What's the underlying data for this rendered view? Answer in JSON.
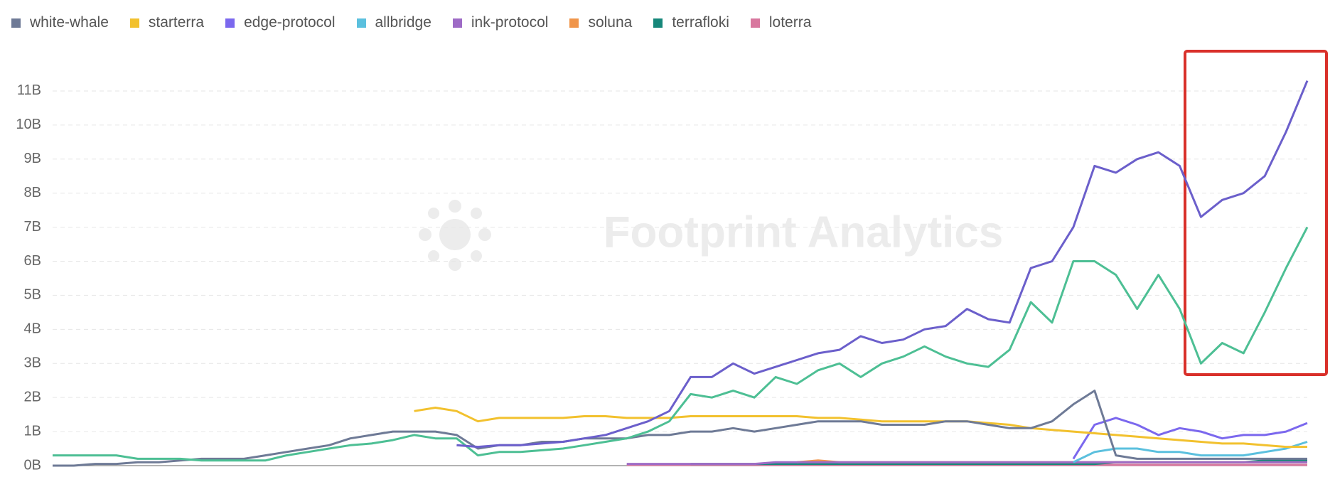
{
  "chart_data": {
    "type": "line",
    "watermark": "Footprint Analytics",
    "grid": true,
    "ylim": [
      0,
      11500000000.0
    ],
    "yticks": [
      {
        "value": 0,
        "label": "0B"
      },
      {
        "value": 1000000000.0,
        "label": "1B"
      },
      {
        "value": 2000000000.0,
        "label": "2B"
      },
      {
        "value": 3000000000.0,
        "label": "3B"
      },
      {
        "value": 4000000000.0,
        "label": "4B"
      },
      {
        "value": 5000000000.0,
        "label": "5B"
      },
      {
        "value": 6000000000.0,
        "label": "6B"
      },
      {
        "value": 7000000000.0,
        "label": "7B"
      },
      {
        "value": 8000000000.0,
        "label": "8B"
      },
      {
        "value": 9000000000.0,
        "label": "9B"
      },
      {
        "value": 10000000000.0,
        "label": "10B"
      },
      {
        "value": 11000000000.0,
        "label": "11B"
      }
    ],
    "series": [
      {
        "color": "#6b5fcb",
        "values": [
          null,
          null,
          null,
          null,
          null,
          null,
          null,
          null,
          null,
          null,
          null,
          null,
          null,
          null,
          null,
          null,
          null,
          null,
          null,
          600000000.0,
          550000000.0,
          600000000.0,
          600000000.0,
          650000000.0,
          700000000.0,
          800000000.0,
          900000000.0,
          1100000000.0,
          1300000000.0,
          1600000000.0,
          2600000000.0,
          2600000000.0,
          3000000000.0,
          2700000000.0,
          2900000000.0,
          3100000000.0,
          3300000000.0,
          3400000000.0,
          3800000000.0,
          3600000000.0,
          3700000000.0,
          4000000000.0,
          4100000000.0,
          4600000000.0,
          4300000000.0,
          4200000000.0,
          5800000000.0,
          6000000000.0,
          7000000000.0,
          8800000000.0,
          8600000000.0,
          9000000000.0,
          9200000000.0,
          8800000000.0,
          7300000000.0,
          7800000000.0,
          8000000000.0,
          8500000000.0,
          9800000000.0,
          11300000000.0
        ]
      },
      {
        "color": "#4dbf94",
        "values": [
          300000000.0,
          300000000.0,
          300000000.0,
          300000000.0,
          200000000.0,
          200000000.0,
          200000000.0,
          150000000.0,
          150000000.0,
          150000000.0,
          150000000.0,
          300000000.0,
          400000000.0,
          500000000.0,
          600000000.0,
          650000000.0,
          750000000.0,
          900000000.0,
          800000000.0,
          800000000.0,
          300000000.0,
          400000000.0,
          400000000.0,
          450000000.0,
          500000000.0,
          600000000.0,
          700000000.0,
          800000000.0,
          1000000000.0,
          1300000000.0,
          2100000000.0,
          2000000000.0,
          2200000000.0,
          2000000000.0,
          2600000000.0,
          2400000000.0,
          2800000000.0,
          3000000000.0,
          2600000000.0,
          3000000000.0,
          3200000000.0,
          3500000000.0,
          3200000000.0,
          3000000000.0,
          2900000000.0,
          3400000000.0,
          4800000000.0,
          4200000000.0,
          6000000000.0,
          6000000000.0,
          5600000000.0,
          4600000000.0,
          5600000000.0,
          4600000000.0,
          3000000000.0,
          3600000000.0,
          3300000000.0,
          4500000000.0,
          5800000000.0,
          7000000000.0
        ]
      },
      {
        "name": "white-whale",
        "color": "#6e7a96",
        "values": [
          0,
          0,
          50000000.0,
          50000000.0,
          100000000.0,
          100000000.0,
          150000000.0,
          200000000.0,
          200000000.0,
          200000000.0,
          300000000.0,
          400000000.0,
          500000000.0,
          600000000.0,
          800000000.0,
          900000000.0,
          1000000000.0,
          1000000000.0,
          1000000000.0,
          900000000.0,
          500000000.0,
          600000000.0,
          600000000.0,
          700000000.0,
          700000000.0,
          800000000.0,
          800000000.0,
          800000000.0,
          900000000.0,
          900000000.0,
          1000000000.0,
          1000000000.0,
          1100000000.0,
          1000000000.0,
          1100000000.0,
          1200000000.0,
          1300000000.0,
          1300000000.0,
          1300000000.0,
          1200000000.0,
          1200000000.0,
          1200000000.0,
          1300000000.0,
          1300000000.0,
          1200000000.0,
          1100000000.0,
          1100000000.0,
          1300000000.0,
          1800000000.0,
          2200000000.0,
          300000000.0,
          200000000.0,
          200000000.0,
          200000000.0,
          200000000.0,
          200000000.0,
          200000000.0,
          200000000.0,
          200000000.0,
          200000000.0
        ]
      },
      {
        "name": "starterra",
        "color": "#f2c12e",
        "values": [
          null,
          null,
          null,
          null,
          null,
          null,
          null,
          null,
          null,
          null,
          null,
          null,
          null,
          null,
          null,
          null,
          null,
          1600000000.0,
          1700000000.0,
          1600000000.0,
          1300000000.0,
          1400000000.0,
          1400000000.0,
          1400000000.0,
          1400000000.0,
          1450000000.0,
          1450000000.0,
          1400000000.0,
          1400000000.0,
          1400000000.0,
          1450000000.0,
          1450000000.0,
          1450000000.0,
          1450000000.0,
          1450000000.0,
          1450000000.0,
          1400000000.0,
          1400000000.0,
          1350000000.0,
          1300000000.0,
          1300000000.0,
          1300000000.0,
          1300000000.0,
          1300000000.0,
          1250000000.0,
          1200000000.0,
          1100000000.0,
          1050000000.0,
          1000000000.0,
          950000000.0,
          900000000.0,
          850000000.0,
          800000000.0,
          750000000.0,
          700000000.0,
          650000000.0,
          650000000.0,
          600000000.0,
          550000000.0,
          550000000.0
        ]
      },
      {
        "name": "edge-protocol",
        "color": "#7b68ee",
        "values": [
          null,
          null,
          null,
          null,
          null,
          null,
          null,
          null,
          null,
          null,
          null,
          null,
          null,
          null,
          null,
          null,
          null,
          null,
          null,
          null,
          null,
          null,
          null,
          null,
          null,
          null,
          null,
          null,
          null,
          null,
          null,
          null,
          null,
          null,
          null,
          null,
          null,
          null,
          null,
          null,
          null,
          null,
          null,
          null,
          null,
          null,
          null,
          null,
          200000000.0,
          1200000000.0,
          1400000000.0,
          1200000000.0,
          900000000.0,
          1100000000.0,
          1000000000.0,
          800000000.0,
          900000000.0,
          900000000.0,
          1000000000.0,
          1250000000.0
        ]
      },
      {
        "name": "allbridge",
        "color": "#5bc0de",
        "values": [
          null,
          null,
          null,
          null,
          null,
          null,
          null,
          null,
          null,
          null,
          null,
          null,
          null,
          null,
          null,
          null,
          null,
          null,
          null,
          null,
          null,
          null,
          null,
          null,
          null,
          null,
          null,
          null,
          null,
          null,
          null,
          null,
          null,
          null,
          null,
          null,
          null,
          null,
          null,
          null,
          null,
          null,
          null,
          null,
          null,
          null,
          null,
          null,
          100000000.0,
          400000000.0,
          500000000.0,
          500000000.0,
          400000000.0,
          400000000.0,
          300000000.0,
          300000000.0,
          300000000.0,
          400000000.0,
          500000000.0,
          700000000.0
        ]
      },
      {
        "name": "ink-protocol",
        "color": "#9e6bc6",
        "values": [
          null,
          null,
          null,
          null,
          null,
          null,
          null,
          null,
          null,
          null,
          null,
          null,
          null,
          null,
          null,
          null,
          null,
          null,
          null,
          null,
          null,
          null,
          null,
          null,
          null,
          null,
          null,
          50000000.0,
          50000000.0,
          50000000.0,
          50000000.0,
          50000000.0,
          50000000.0,
          50000000.0,
          100000000.0,
          100000000.0,
          100000000.0,
          100000000.0,
          100000000.0,
          100000000.0,
          100000000.0,
          100000000.0,
          100000000.0,
          100000000.0,
          100000000.0,
          100000000.0,
          100000000.0,
          100000000.0,
          100000000.0,
          100000000.0,
          100000000.0,
          100000000.0,
          100000000.0,
          100000000.0,
          100000000.0,
          100000000.0,
          100000000.0,
          100000000.0,
          100000000.0,
          100000000.0
        ]
      },
      {
        "name": "soluna",
        "color": "#f0954a",
        "values": [
          null,
          null,
          null,
          null,
          null,
          null,
          null,
          null,
          null,
          null,
          null,
          null,
          null,
          null,
          null,
          null,
          null,
          null,
          null,
          null,
          null,
          null,
          null,
          null,
          null,
          null,
          null,
          null,
          null,
          null,
          null,
          null,
          null,
          null,
          null,
          100000000.0,
          150000000.0,
          100000000.0,
          100000000.0,
          100000000.0,
          100000000.0,
          100000000.0,
          100000000.0,
          100000000.0,
          100000000.0,
          100000000.0,
          100000000.0,
          100000000.0,
          100000000.0,
          100000000.0,
          100000000.0,
          100000000.0,
          100000000.0,
          100000000.0,
          100000000.0,
          100000000.0,
          100000000.0,
          100000000.0,
          100000000.0,
          100000000.0
        ]
      },
      {
        "name": "terrafloki",
        "color": "#16877a",
        "values": [
          null,
          null,
          null,
          null,
          null,
          null,
          null,
          null,
          null,
          null,
          null,
          null,
          null,
          null,
          null,
          null,
          null,
          null,
          null,
          null,
          null,
          null,
          null,
          null,
          null,
          null,
          null,
          null,
          null,
          null,
          50000000.0,
          50000000.0,
          50000000.0,
          50000000.0,
          50000000.0,
          50000000.0,
          50000000.0,
          50000000.0,
          50000000.0,
          50000000.0,
          50000000.0,
          50000000.0,
          50000000.0,
          50000000.0,
          50000000.0,
          50000000.0,
          50000000.0,
          50000000.0,
          50000000.0,
          50000000.0,
          100000000.0,
          100000000.0,
          100000000.0,
          100000000.0,
          100000000.0,
          100000000.0,
          100000000.0,
          150000000.0,
          150000000.0,
          150000000.0
        ]
      },
      {
        "name": "loterra",
        "color": "#d8779e",
        "values": [
          null,
          null,
          null,
          null,
          null,
          null,
          null,
          null,
          null,
          null,
          null,
          null,
          null,
          null,
          null,
          null,
          null,
          null,
          null,
          null,
          null,
          null,
          null,
          null,
          null,
          null,
          null,
          20000000.0,
          20000000.0,
          20000000.0,
          20000000.0,
          20000000.0,
          20000000.0,
          20000000.0,
          20000000.0,
          20000000.0,
          20000000.0,
          20000000.0,
          20000000.0,
          20000000.0,
          20000000.0,
          20000000.0,
          20000000.0,
          20000000.0,
          20000000.0,
          20000000.0,
          20000000.0,
          20000000.0,
          20000000.0,
          20000000.0,
          20000000.0,
          20000000.0,
          20000000.0,
          20000000.0,
          20000000.0,
          20000000.0,
          20000000.0,
          20000000.0,
          20000000.0,
          20000000.0
        ]
      }
    ]
  }
}
